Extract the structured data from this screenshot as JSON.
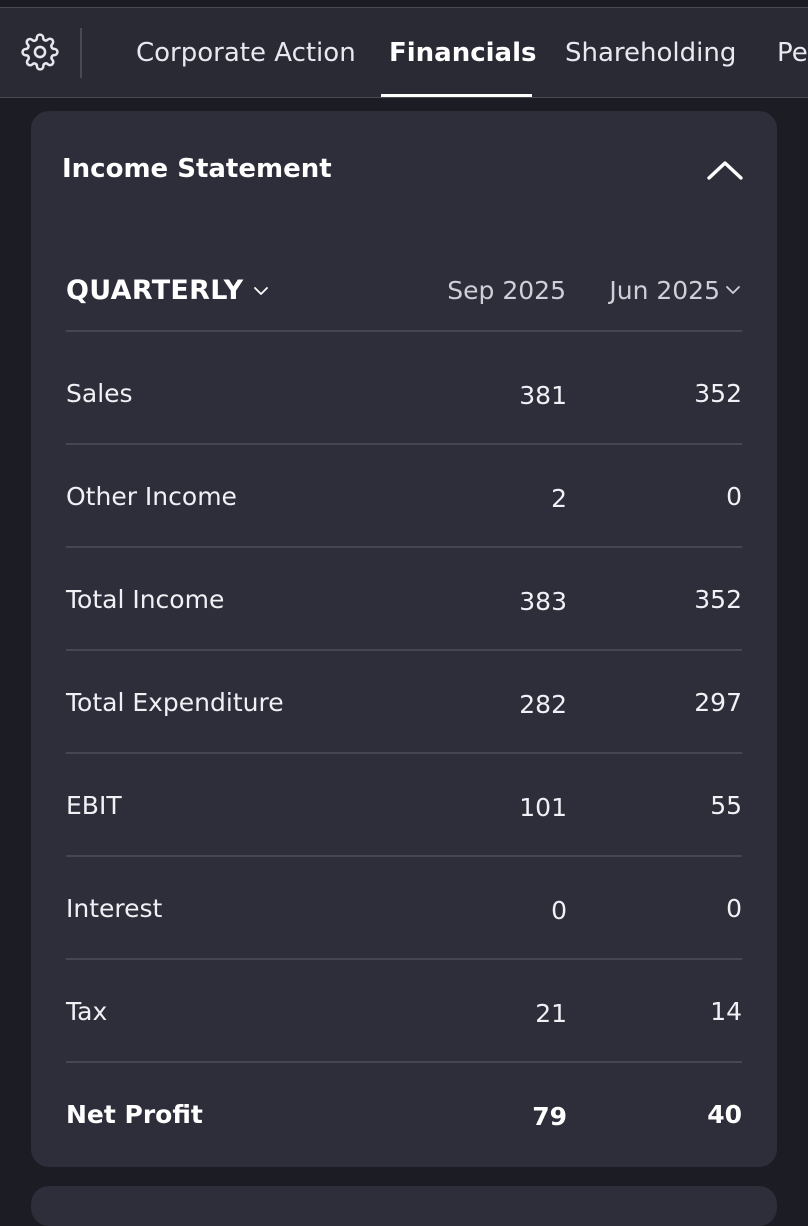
{
  "tabs": [
    {
      "label": "Corporate Action",
      "active": false
    },
    {
      "label": "Financials",
      "active": true
    },
    {
      "label": "Shareholding",
      "active": false
    },
    {
      "label": "Pe",
      "active": false
    }
  ],
  "icons": {
    "settings": "gear-icon",
    "collapse": "chevron-up-icon",
    "period_dropdown": "chevron-down-icon",
    "column_dropdown": "chevron-down-icon"
  },
  "card": {
    "title": "Income Statement",
    "period": "QUARTERLY",
    "columns": [
      "Sep 2025",
      "Jun 2025"
    ],
    "rows": [
      {
        "label": "Sales",
        "values": [
          "381",
          "352"
        ],
        "bold": false
      },
      {
        "label": "Other Income",
        "values": [
          "2",
          "0"
        ],
        "bold": false
      },
      {
        "label": "Total Income",
        "values": [
          "383",
          "352"
        ],
        "bold": false
      },
      {
        "label": "Total Expenditure",
        "values": [
          "282",
          "297"
        ],
        "bold": false
      },
      {
        "label": "EBIT",
        "values": [
          "101",
          "55"
        ],
        "bold": false
      },
      {
        "label": "Interest",
        "values": [
          "0",
          "0"
        ],
        "bold": false
      },
      {
        "label": "Tax",
        "values": [
          "21",
          "14"
        ],
        "bold": false
      },
      {
        "label": "Net Profit",
        "values": [
          "79",
          "40"
        ],
        "bold": true
      }
    ]
  },
  "colors": {
    "background": "#1c1c24",
    "tabbar": "#2a2a35",
    "card": "#2e2e3a",
    "divider": "#464652",
    "text": "#ffffff"
  }
}
